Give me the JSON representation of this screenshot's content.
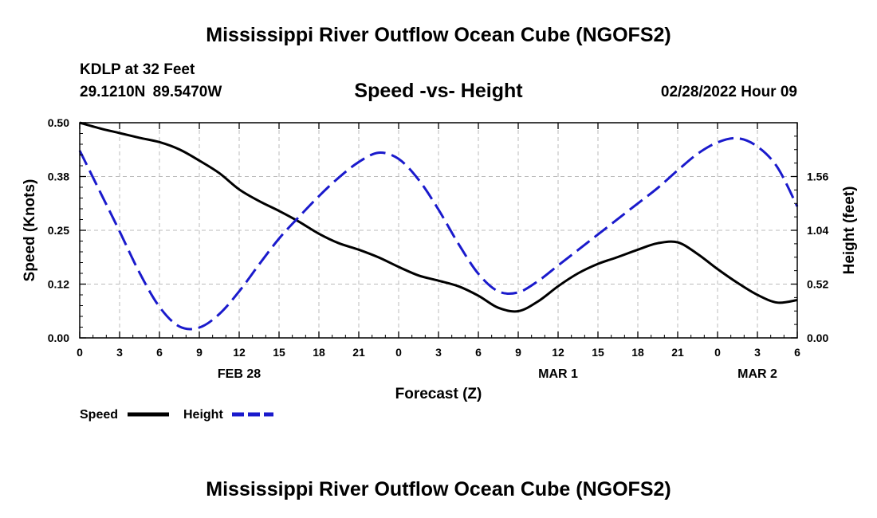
{
  "title": "Mississippi River Outflow Ocean Cube (NGOFS2)",
  "station": {
    "name": "KDLP at 32 Feet",
    "coords": "29.1210N  89.5470W"
  },
  "subtitle": "Speed -vs- Height",
  "datetime": "02/28/2022 Hour 09",
  "footer_title": "Mississippi River Outflow Ocean Cube (NGOFS2)",
  "colors": {
    "speed": "#000000",
    "height": "#1a1acc",
    "grid": "#bbbbbb"
  },
  "chart_data": {
    "type": "line",
    "xlabel": "Forecast (Z)",
    "ylabel_left": "Speed (Knots)",
    "ylabel_right": "Height (feet)",
    "x_range": [
      0,
      54
    ],
    "x_ticks": [
      0,
      3,
      6,
      9,
      12,
      15,
      18,
      21,
      24,
      27,
      30,
      33,
      36,
      39,
      42,
      45,
      48,
      51,
      54
    ],
    "x_tick_labels": [
      "0",
      "3",
      "6",
      "9",
      "12",
      "15",
      "18",
      "21",
      "0",
      "3",
      "6",
      "9",
      "12",
      "15",
      "18",
      "21",
      "0",
      "3",
      "6"
    ],
    "date_labels": [
      {
        "x": 12,
        "label": "FEB 28"
      },
      {
        "x": 36,
        "label": "MAR 1"
      },
      {
        "x": 51,
        "label": "MAR 2"
      }
    ],
    "left_axis": {
      "range": [
        0,
        0.5
      ],
      "ticks": [
        0,
        0.125,
        0.25,
        0.375,
        0.5
      ],
      "tick_labels": [
        "0.00",
        "0.12",
        "0.25",
        "0.38",
        "0.50"
      ]
    },
    "right_axis": {
      "range": [
        0,
        2.08
      ],
      "ticks": [
        0,
        0.52,
        1.04,
        1.56
      ],
      "tick_labels": [
        "0.00",
        "0.52",
        "1.04",
        "1.56"
      ]
    },
    "legend": [
      {
        "name": "Speed",
        "style": "solid"
      },
      {
        "name": "Height",
        "style": "dashed"
      }
    ],
    "series": [
      {
        "name": "Speed",
        "axis": "left",
        "x": [
          0,
          1.5,
          3,
          4.5,
          6,
          7.5,
          9,
          10.5,
          12,
          13.5,
          15,
          16.5,
          18,
          19.5,
          21,
          22.5,
          24,
          25.5,
          27,
          28.5,
          30,
          31.5,
          33,
          34.5,
          36,
          37.5,
          39,
          40.5,
          42,
          43.5,
          45,
          46.5,
          48,
          49.5,
          51,
          52.5,
          54
        ],
        "values": [
          0.5,
          0.487,
          0.476,
          0.465,
          0.455,
          0.438,
          0.412,
          0.383,
          0.345,
          0.318,
          0.295,
          0.27,
          0.242,
          0.22,
          0.205,
          0.187,
          0.165,
          0.145,
          0.133,
          0.12,
          0.098,
          0.07,
          0.062,
          0.085,
          0.12,
          0.15,
          0.172,
          0.188,
          0.205,
          0.22,
          0.222,
          0.195,
          0.16,
          0.128,
          0.1,
          0.082,
          0.088
        ]
      },
      {
        "name": "Height",
        "axis": "right",
        "x": [
          0,
          1.5,
          3,
          4.5,
          6,
          7.5,
          9,
          10.5,
          12,
          13.5,
          15,
          16.5,
          18,
          19.5,
          21,
          22.5,
          24,
          25.5,
          27,
          28.5,
          30,
          31.5,
          33,
          34.5,
          36,
          37.5,
          39,
          40.5,
          42,
          43.5,
          45,
          46.5,
          48,
          49.5,
          51,
          52.5,
          54
        ],
        "values": [
          1.81,
          1.42,
          1.03,
          0.63,
          0.3,
          0.11,
          0.1,
          0.23,
          0.45,
          0.71,
          0.96,
          1.17,
          1.37,
          1.55,
          1.7,
          1.79,
          1.73,
          1.53,
          1.24,
          0.91,
          0.62,
          0.45,
          0.44,
          0.55,
          0.7,
          0.85,
          1.0,
          1.15,
          1.3,
          1.45,
          1.62,
          1.78,
          1.89,
          1.93,
          1.85,
          1.65,
          1.27
        ]
      }
    ]
  }
}
